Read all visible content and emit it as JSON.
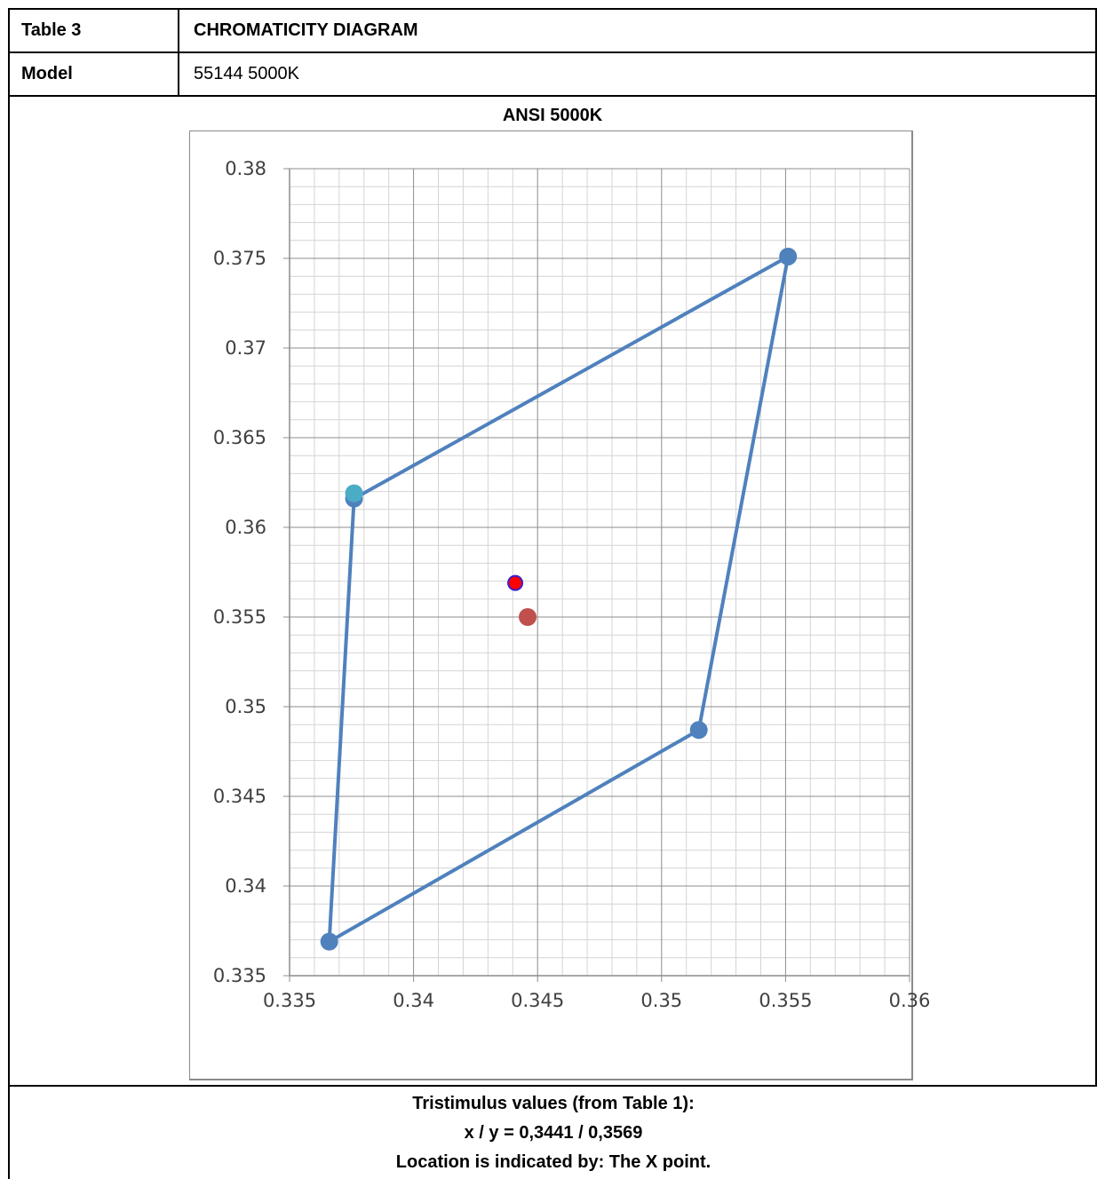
{
  "header": {
    "table_label": "Table 3",
    "table_title": "CHROMATICITY DIAGRAM",
    "model_label": "Model",
    "model_value": "55144 5000K"
  },
  "chart_data": {
    "type": "scatter",
    "title": "ANSI 5000K",
    "xlim": [
      0.335,
      0.36
    ],
    "ylim": [
      0.335,
      0.38
    ],
    "x_ticks": [
      "0.335",
      "0.34",
      "0.345",
      "0.35",
      "0.355",
      "0.36"
    ],
    "y_ticks": [
      "0.38",
      "0.375",
      "0.37",
      "0.365",
      "0.36",
      "0.355",
      "0.35",
      "0.345",
      "0.34",
      "0.335"
    ],
    "grid": true,
    "series": [
      {
        "name": "",
        "kind": "polygon",
        "color": "#4f81bd",
        "points": [
          [
            0.3551,
            0.3751
          ],
          [
            0.3376,
            0.3616
          ],
          [
            0.3366,
            0.3369
          ],
          [
            0.3515,
            0.3487
          ],
          [
            0.3551,
            0.3751
          ]
        ]
      },
      {
        "name": "",
        "kind": "point",
        "color": "#4bacc6",
        "points": [
          [
            0.3376,
            0.3619
          ]
        ]
      },
      {
        "name": "",
        "kind": "point",
        "color": "#c0504d",
        "points": [
          [
            0.3446,
            0.355
          ]
        ]
      },
      {
        "name": "",
        "kind": "point",
        "color": "#ff0000",
        "stroke": "#3b1fd0",
        "points": [
          [
            0.3441,
            0.3569
          ]
        ]
      }
    ]
  },
  "footer": {
    "line1": "Tristimulus values (from Table 1):",
    "line2": "x / y =  0,3441 / 0,3569",
    "line3": "Location is indicated by: The X point."
  }
}
